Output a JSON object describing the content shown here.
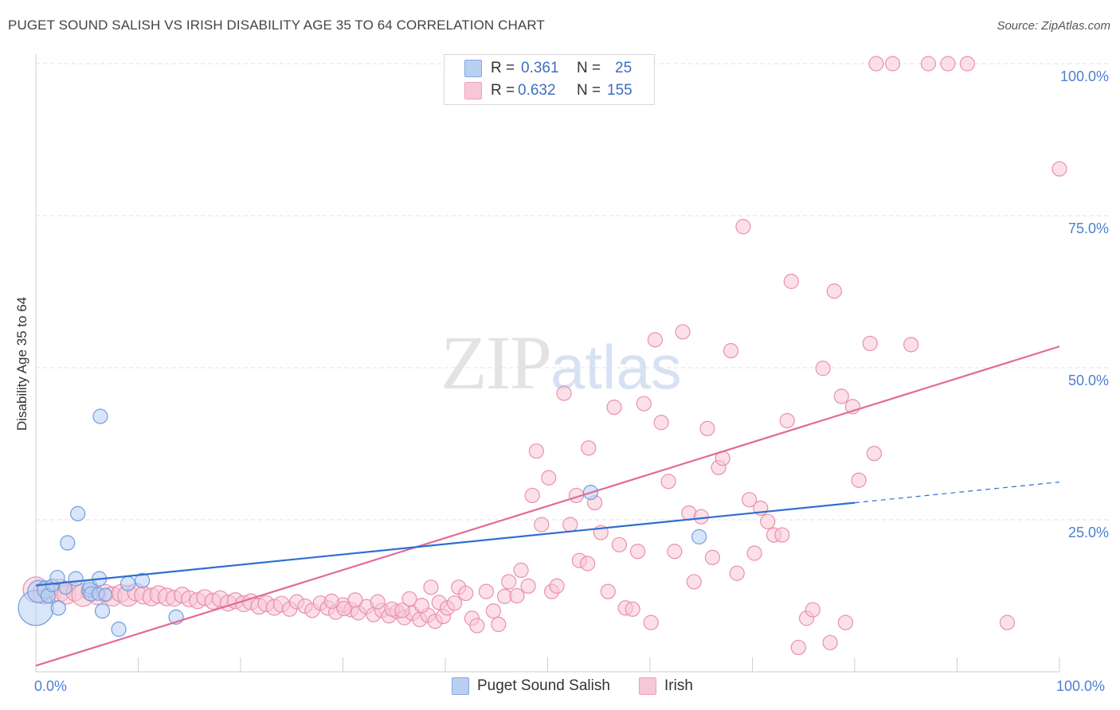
{
  "header": {
    "title": "PUGET SOUND SALISH VS IRISH DISABILITY AGE 35 TO 64 CORRELATION CHART",
    "source": "Source: ZipAtlas.com"
  },
  "watermark": {
    "zip": "ZIP",
    "atlas": "atlas"
  },
  "legend_top": {
    "rows": [
      {
        "r_label": "R =",
        "r_value": "0.361",
        "n_label": "N =",
        "n_value": "25",
        "color": "#a9c6f0"
      },
      {
        "r_label": "R =",
        "r_value": "0.632",
        "n_label": "N =",
        "n_value": "155",
        "color": "#f7b6cb"
      }
    ]
  },
  "legend_bottom": [
    {
      "label": "Puget Sound Salish",
      "color": "#a9c6f0"
    },
    {
      "label": "Irish",
      "color": "#f7b6cb"
    }
  ],
  "chart_data": {
    "type": "scatter",
    "title": "PUGET SOUND SALISH VS IRISH DISABILITY AGE 35 TO 64 CORRELATION CHART",
    "xlabel": "",
    "ylabel": "Disability Age 35 to 64",
    "xlim": [
      0,
      100
    ],
    "ylim": [
      0,
      100
    ],
    "x_tick_labels": [
      "0.0%",
      "100.0%"
    ],
    "y_tick_labels": [
      "25.0%",
      "50.0%",
      "75.0%",
      "100.0%"
    ],
    "y_ticks": [
      25,
      50,
      75,
      100
    ],
    "grid": true,
    "legend_placement": "top-center",
    "series": [
      {
        "name": "Puget Sound Salish",
        "color": "#6f9ee0",
        "fill": "#b9d0f3",
        "trend": {
          "x": [
            0,
            80
          ],
          "y": [
            14.2,
            27.8
          ],
          "dashed_to": [
            100,
            31.2
          ],
          "color": "#2f6fd0"
        },
        "points": [
          [
            0,
            10.5,
            22
          ],
          [
            0.3,
            13.2,
            14
          ],
          [
            1,
            13.5,
            11
          ],
          [
            1.2,
            12.5,
            9
          ],
          [
            1.6,
            14.2,
            8
          ],
          [
            2.1,
            15.5,
            9
          ],
          [
            2.2,
            10.5,
            9
          ],
          [
            2.9,
            13.8,
            8
          ],
          [
            3.1,
            21.2,
            9
          ],
          [
            3.9,
            15.3,
            9
          ],
          [
            4.1,
            26,
            9
          ],
          [
            5.2,
            13.5,
            9
          ],
          [
            5.3,
            14,
            9
          ],
          [
            5.4,
            12.8,
            9
          ],
          [
            6.2,
            15.3,
            9
          ],
          [
            6.1,
            12.8,
            8
          ],
          [
            6.3,
            42,
            9
          ],
          [
            6.5,
            10,
            9
          ],
          [
            6.8,
            12.7,
            8
          ],
          [
            8.1,
            7,
            9
          ],
          [
            9,
            14.5,
            9
          ],
          [
            10.4,
            15,
            9
          ],
          [
            13.7,
            9,
            9
          ],
          [
            54.2,
            29.5,
            9
          ],
          [
            64.8,
            22.2,
            9
          ]
        ]
      },
      {
        "name": "Irish",
        "color": "#e990ad",
        "fill": "#f7c7d6",
        "trend": {
          "x": [
            0,
            100
          ],
          "y": [
            1,
            53.5
          ],
          "color": "#e26a97"
        },
        "points": [
          [
            0,
            13.5,
            16
          ],
          [
            0.8,
            13,
            14
          ],
          [
            1.5,
            12.8,
            12
          ],
          [
            2.3,
            13.4,
            14
          ],
          [
            3,
            12.7,
            12
          ],
          [
            3.8,
            13.1,
            11
          ],
          [
            4.6,
            12.6,
            14
          ],
          [
            5.3,
            13.2,
            11
          ],
          [
            6,
            12.5,
            11
          ],
          [
            6.8,
            12.9,
            11
          ],
          [
            7.5,
            12.4,
            12
          ],
          [
            8.3,
            12.9,
            11
          ],
          [
            9,
            12.5,
            13
          ],
          [
            9.8,
            13.1,
            11
          ],
          [
            10.5,
            12.6,
            11
          ],
          [
            11.3,
            12.3,
            11
          ],
          [
            12,
            12.7,
            11
          ],
          [
            12.8,
            12.3,
            11
          ],
          [
            13.5,
            12.1,
            10
          ],
          [
            14.3,
            12.6,
            10
          ],
          [
            15,
            12,
            10
          ],
          [
            15.8,
            11.7,
            10
          ],
          [
            16.5,
            12.2,
            10
          ],
          [
            17.3,
            11.6,
            10
          ],
          [
            18,
            12,
            10
          ],
          [
            18.8,
            11.3,
            10
          ],
          [
            19.5,
            11.7,
            10
          ],
          [
            20.3,
            11.2,
            10
          ],
          [
            21,
            11.5,
            10
          ],
          [
            21.8,
            10.8,
            10
          ],
          [
            22.5,
            11.2,
            10
          ],
          [
            23.3,
            10.6,
            10
          ],
          [
            24,
            11.1,
            10
          ],
          [
            24.8,
            10.3,
            9
          ],
          [
            25.5,
            11.5,
            9
          ],
          [
            26.3,
            10.8,
            9
          ],
          [
            27,
            10.1,
            9
          ],
          [
            27.8,
            11.3,
            9
          ],
          [
            28.5,
            10.5,
            9
          ],
          [
            29.3,
            9.8,
            9
          ],
          [
            30,
            11,
            9
          ],
          [
            30.8,
            10.2,
            9
          ],
          [
            31.5,
            9.7,
            9
          ],
          [
            32.3,
            10.7,
            9
          ],
          [
            33,
            9.4,
            9
          ],
          [
            33.8,
            10.1,
            9
          ],
          [
            34.5,
            9.2,
            9
          ],
          [
            35.3,
            9.9,
            9
          ],
          [
            36,
            8.9,
            9
          ],
          [
            36.8,
            9.6,
            9
          ],
          [
            37.5,
            8.6,
            9
          ],
          [
            38.3,
            9.3,
            9
          ],
          [
            39,
            8.3,
            9
          ],
          [
            39.8,
            9.1,
            9
          ],
          [
            28.9,
            11.6,
            9
          ],
          [
            30.1,
            10.4,
            9
          ],
          [
            31.2,
            11.8,
            9
          ],
          [
            33.4,
            11.5,
            9
          ],
          [
            34.8,
            10.3,
            9
          ],
          [
            35.8,
            10.1,
            9
          ],
          [
            36.5,
            12,
            9
          ],
          [
            37.7,
            10.9,
            9
          ],
          [
            38.6,
            13.9,
            9
          ],
          [
            39.4,
            11.4,
            9
          ],
          [
            40.2,
            10.5,
            9
          ],
          [
            40.9,
            11.3,
            9
          ],
          [
            41.3,
            13.9,
            9
          ],
          [
            42,
            12.9,
            9
          ],
          [
            42.6,
            8.8,
            9
          ],
          [
            43.1,
            7.6,
            9
          ],
          [
            44,
            13.2,
            9
          ],
          [
            44.7,
            10,
            9
          ],
          [
            45.2,
            7.8,
            9
          ],
          [
            45.8,
            12.4,
            9
          ],
          [
            46.2,
            14.8,
            9
          ],
          [
            47,
            12.5,
            9
          ],
          [
            47.4,
            16.7,
            9
          ],
          [
            48.1,
            14.1,
            9
          ],
          [
            48.5,
            29,
            9
          ],
          [
            48.9,
            36.3,
            9
          ],
          [
            49.4,
            24.2,
            9
          ],
          [
            50.1,
            31.9,
            9
          ],
          [
            50.4,
            13.2,
            9
          ],
          [
            50.9,
            14.1,
            9
          ],
          [
            51.6,
            45.8,
            9
          ],
          [
            52.2,
            24.2,
            9
          ],
          [
            52.8,
            29,
            9
          ],
          [
            53.1,
            18.3,
            9
          ],
          [
            53.9,
            17.8,
            9
          ],
          [
            54,
            36.8,
            9
          ],
          [
            54.6,
            27.8,
            9
          ],
          [
            55.2,
            22.9,
            9
          ],
          [
            55.9,
            13.2,
            9
          ],
          [
            56.5,
            43.5,
            9
          ],
          [
            57,
            20.9,
            9
          ],
          [
            57.6,
            10.5,
            9
          ],
          [
            58.3,
            10.3,
            9
          ],
          [
            58.8,
            19.8,
            9
          ],
          [
            59.4,
            44.1,
            9
          ],
          [
            60.1,
            8.1,
            9
          ],
          [
            60.5,
            54.6,
            9
          ],
          [
            61.1,
            41,
            9
          ],
          [
            61.8,
            31.3,
            9
          ],
          [
            62.4,
            19.8,
            9
          ],
          [
            63.2,
            55.9,
            9
          ],
          [
            63.8,
            26.1,
            9
          ],
          [
            64.3,
            14.8,
            9
          ],
          [
            65,
            25.5,
            9
          ],
          [
            65.6,
            40,
            9
          ],
          [
            66.1,
            18.8,
            9
          ],
          [
            66.7,
            33.6,
            9
          ],
          [
            67.1,
            35.1,
            9
          ],
          [
            67.9,
            52.8,
            9
          ],
          [
            68.5,
            16.2,
            9
          ],
          [
            69.1,
            73.2,
            9
          ],
          [
            69.7,
            28.3,
            9
          ],
          [
            70.2,
            19.5,
            9
          ],
          [
            70.8,
            26.9,
            9
          ],
          [
            71.5,
            24.7,
            9
          ],
          [
            72.1,
            22.5,
            9
          ],
          [
            72.9,
            22.5,
            9
          ],
          [
            73.4,
            41.3,
            9
          ],
          [
            73.8,
            64.2,
            9
          ],
          [
            74.5,
            4,
            9
          ],
          [
            75.3,
            8.8,
            9
          ],
          [
            75.9,
            10.2,
            9
          ],
          [
            76.9,
            49.9,
            9
          ],
          [
            77.6,
            4.8,
            9
          ],
          [
            78,
            62.6,
            9
          ],
          [
            78.7,
            45.3,
            9
          ],
          [
            79.1,
            8.1,
            9
          ],
          [
            79.8,
            43.6,
            9
          ],
          [
            80.4,
            31.5,
            9
          ],
          [
            81.5,
            54,
            9
          ],
          [
            81.9,
            35.9,
            9
          ],
          [
            82.1,
            100,
            9
          ],
          [
            83.7,
            100,
            9
          ],
          [
            85.5,
            53.8,
            9
          ],
          [
            87.2,
            100,
            9
          ],
          [
            89.1,
            100,
            9
          ],
          [
            91,
            100,
            9
          ],
          [
            94.9,
            8.1,
            9
          ],
          [
            100,
            82.7,
            9
          ]
        ]
      }
    ]
  }
}
